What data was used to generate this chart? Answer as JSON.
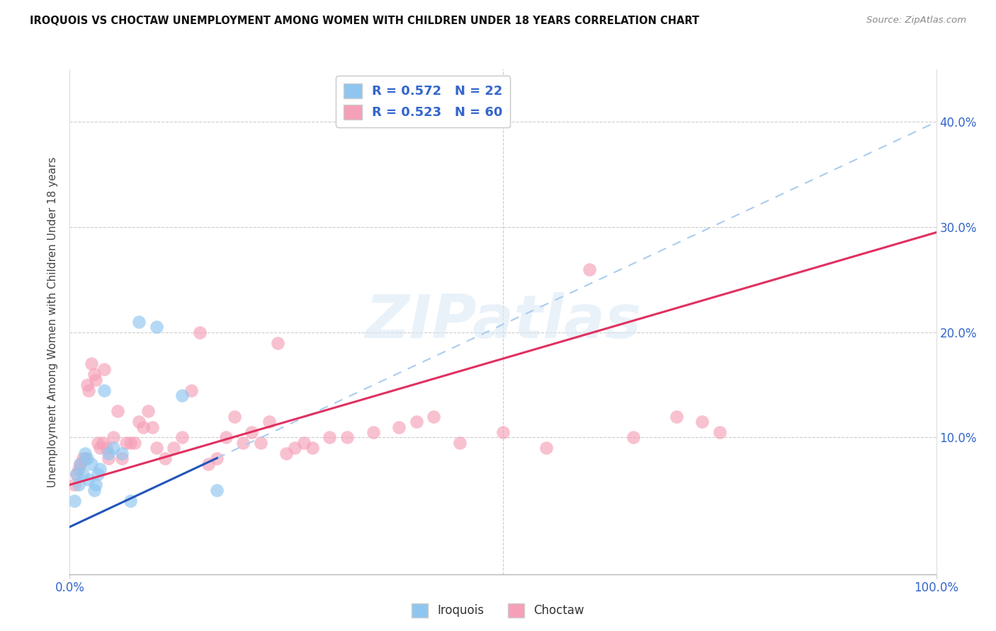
{
  "title": "IROQUOIS VS CHOCTAW UNEMPLOYMENT AMONG WOMEN WITH CHILDREN UNDER 18 YEARS CORRELATION CHART",
  "source": "Source: ZipAtlas.com",
  "ylabel": "Unemployment Among Women with Children Under 18 years",
  "xlim": [
    0,
    100
  ],
  "ylim": [
    -3,
    45
  ],
  "xtick_labels": [
    "0.0%",
    "100.0%"
  ],
  "ytick_labels": [
    "10.0%",
    "20.0%",
    "30.0%",
    "40.0%"
  ],
  "ytick_vals": [
    10,
    20,
    30,
    40
  ],
  "xtick_vals": [
    0,
    100
  ],
  "iroquois_R": 0.572,
  "iroquois_N": 22,
  "choctaw_R": 0.523,
  "choctaw_N": 60,
  "iroquois_color": "#8ec6f0",
  "choctaw_color": "#f5a0b8",
  "iroquois_line_color": "#2255bb",
  "choctaw_line_color": "#e03060",
  "iroquois_dashed_color": "#aaccee",
  "watermark_text": "ZIPatlas",
  "iroquois_x": [
    0.5,
    0.8,
    1.0,
    1.2,
    1.5,
    1.8,
    2.0,
    2.2,
    2.5,
    2.8,
    3.0,
    3.2,
    3.5,
    4.0,
    4.5,
    5.0,
    6.0,
    7.0,
    8.0,
    10.0,
    13.0,
    17.0
  ],
  "iroquois_y": [
    4.0,
    6.5,
    5.5,
    7.5,
    6.5,
    8.5,
    8.0,
    6.0,
    7.5,
    5.0,
    5.5,
    6.5,
    7.0,
    14.5,
    8.5,
    9.0,
    8.5,
    4.0,
    21.0,
    20.5,
    14.0,
    5.0
  ],
  "choctaw_x": [
    0.5,
    0.8,
    1.0,
    1.2,
    1.5,
    1.8,
    2.0,
    2.2,
    2.5,
    2.8,
    3.0,
    3.2,
    3.5,
    3.8,
    4.0,
    4.2,
    4.5,
    5.0,
    5.5,
    6.0,
    6.5,
    7.0,
    7.5,
    8.0,
    8.5,
    9.0,
    9.5,
    10.0,
    11.0,
    12.0,
    13.0,
    14.0,
    15.0,
    16.0,
    17.0,
    18.0,
    19.0,
    20.0,
    21.0,
    22.0,
    23.0,
    24.0,
    25.0,
    26.0,
    27.0,
    28.0,
    30.0,
    32.0,
    35.0,
    38.0,
    40.0,
    42.0,
    45.0,
    50.0,
    55.0,
    60.0,
    65.0,
    70.0,
    73.0,
    75.0
  ],
  "choctaw_y": [
    5.5,
    6.5,
    7.0,
    7.5,
    8.0,
    8.0,
    15.0,
    14.5,
    17.0,
    16.0,
    15.5,
    9.5,
    9.0,
    9.5,
    16.5,
    9.0,
    8.0,
    10.0,
    12.5,
    8.0,
    9.5,
    9.5,
    9.5,
    11.5,
    11.0,
    12.5,
    11.0,
    9.0,
    8.0,
    9.0,
    10.0,
    14.5,
    20.0,
    7.5,
    8.0,
    10.0,
    12.0,
    9.5,
    10.5,
    9.5,
    11.5,
    19.0,
    8.5,
    9.0,
    9.5,
    9.0,
    10.0,
    10.0,
    10.5,
    11.0,
    11.5,
    12.0,
    9.5,
    10.5,
    9.0,
    26.0,
    10.0,
    12.0,
    11.5,
    10.5
  ],
  "iroq_line_intercept": 1.5,
  "iroq_line_slope": 0.385,
  "choc_line_intercept": 5.5,
  "choc_line_slope": 0.24
}
